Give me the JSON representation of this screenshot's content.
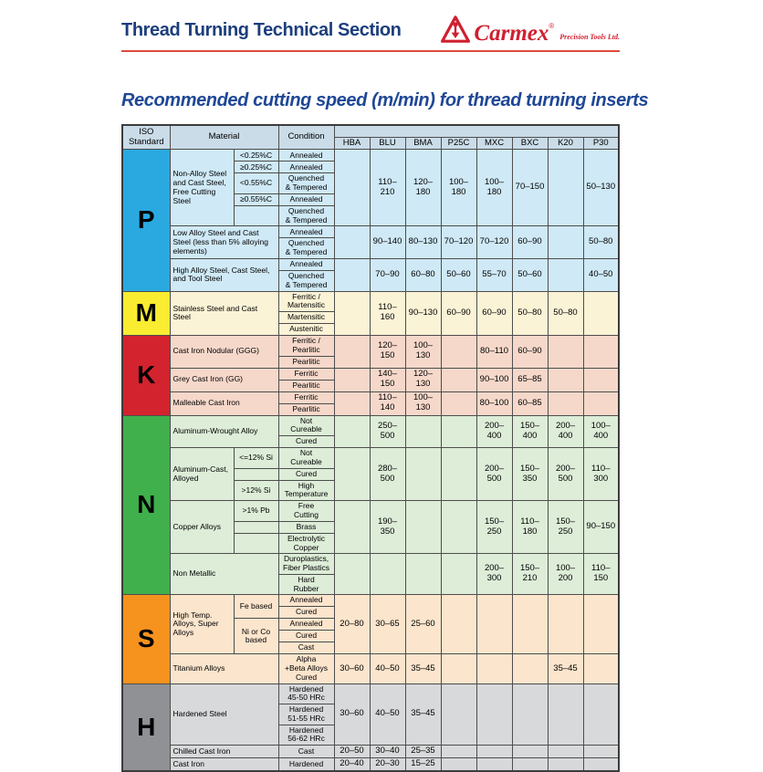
{
  "page": {
    "header_title": "Thread Turning Technical Section",
    "logo": {
      "brand": "Carmex",
      "registered": "®",
      "suffix": "Precision Tools Ltd."
    },
    "table_title": "Recommended cutting speed (m/min) for thread turning inserts"
  },
  "colors": {
    "header_blue": "#1c3e7c",
    "title_blue": "#1e4796",
    "rule_red": "#dd4b3e",
    "brand_red": "#cf2030",
    "table_header_bg": "#cadce8",
    "border": "#4d4d4d"
  },
  "table": {
    "header": {
      "iso": "ISO\nStandard",
      "material": "Material",
      "condition": "Condition",
      "grades": [
        "HBA",
        "BLU",
        "BMA",
        "P25C",
        "MXC",
        "BXC",
        "K20",
        "P30"
      ]
    },
    "sections": [
      {
        "letter": "P",
        "letter_bg": "#29a9e0",
        "body_bg": "#cfe9f6",
        "groups": [
          {
            "material": "Non-Alloy Steel and Cast Steel, Free Cutting Steel",
            "sub_col": true,
            "rows": [
              {
                "sub": "<0.25%C",
                "condition": "Annealed"
              },
              {
                "sub": "≥0.25%C",
                "condition": "Annealed"
              },
              {
                "sub": "<0.55%C",
                "condition": "Quenched\n& Tempered"
              },
              {
                "sub": "≥0.55%C",
                "condition": "Annealed"
              },
              {
                "sub": "",
                "condition": "Quenched\n& Tempered"
              }
            ],
            "values": [
              "",
              "110–210",
              "120–180",
              "100–180",
              "100–180",
              "70–150",
              "",
              "50–130"
            ]
          },
          {
            "material": "Low Alloy Steel and Cast Steel (less than 5% alloying elements)",
            "sub_col": false,
            "rows": [
              {
                "condition": "Annealed"
              },
              {
                "condition": "Quenched\n& Tempered"
              }
            ],
            "values": [
              "",
              "90–140",
              "80–130",
              "70–120",
              "70–120",
              "60–90",
              "",
              "50–80"
            ]
          },
          {
            "material": "High Alloy Steel, Cast Steel, and Tool Steel",
            "sub_col": false,
            "rows": [
              {
                "condition": "Annealed"
              },
              {
                "condition": "Quenched\n& Tempered"
              }
            ],
            "values": [
              "",
              "70–90",
              "60–80",
              "50–60",
              "55–70",
              "50–60",
              "",
              "40–50"
            ]
          }
        ]
      },
      {
        "letter": "M",
        "letter_bg": "#f9ec31",
        "body_bg": "#fbf3d6",
        "groups": [
          {
            "material": "Stainless Steel and Cast Steel",
            "sub_col": false,
            "rows": [
              {
                "condition": "Ferritic /\nMartensitic"
              },
              {
                "condition": "Martensitic"
              },
              {
                "condition": "Austenitic"
              }
            ],
            "values": [
              "",
              "110–160",
              "90–130",
              "60–90",
              "60–90",
              "50–80",
              "50–80",
              ""
            ]
          }
        ]
      },
      {
        "letter": "K",
        "letter_bg": "#d2232e",
        "body_bg": "#f6d8ca",
        "groups": [
          {
            "material": "Cast Iron Nodular (GGG)",
            "sub_col": false,
            "rows": [
              {
                "condition": "Ferritic /\nPearlitic"
              },
              {
                "condition": "Pearlitic"
              }
            ],
            "values": [
              "",
              "120–150",
              "100–130",
              "",
              "80–110",
              "60–90",
              "",
              ""
            ]
          },
          {
            "material": "Grey Cast Iron (GG)",
            "sub_col": false,
            "rows": [
              {
                "condition": "Ferritic"
              },
              {
                "condition": "Pearlitic"
              }
            ],
            "values": [
              "",
              "140–150",
              "120–130",
              "",
              "90–100",
              "65–85",
              "",
              ""
            ]
          },
          {
            "material": "Malleable Cast Iron",
            "sub_col": false,
            "rows": [
              {
                "condition": "Ferritic"
              },
              {
                "condition": "Pearlitic"
              }
            ],
            "values": [
              "",
              "110–140",
              "100–130",
              "",
              "80–100",
              "60–85",
              "",
              ""
            ]
          }
        ]
      },
      {
        "letter": "N",
        "letter_bg": "#3fb04c",
        "body_bg": "#ddedd8",
        "groups": [
          {
            "material": "Aluminum-Wrought Alloy",
            "sub_col": false,
            "rows": [
              {
                "condition": "Not\nCureable"
              },
              {
                "condition": "Cured"
              }
            ],
            "values": [
              "",
              "250–500",
              "",
              "",
              "200–400",
              "150–400",
              "200–400",
              "100–400"
            ]
          },
          {
            "material": "Aluminum-Cast, Alloyed",
            "sub_col": true,
            "rows": [
              {
                "sub": "<=12% Si",
                "condition": "Not\nCureable"
              },
              {
                "sub": "",
                "condition": "Cured"
              },
              {
                "sub": ">12% Si",
                "condition": "High\nTemperature"
              }
            ],
            "values": [
              "",
              "280–500",
              "",
              "",
              "200–500",
              "150–350",
              "200–500",
              "110–300"
            ]
          },
          {
            "material": "Copper Alloys",
            "sub_col": true,
            "rows": [
              {
                "sub": ">1% Pb",
                "condition": "Free\nCutting"
              },
              {
                "sub": "",
                "condition": "Brass"
              },
              {
                "sub": "",
                "condition": "Electrolytic\nCopper"
              }
            ],
            "values": [
              "",
              "190–350",
              "",
              "",
              "150–250",
              "110–180",
              "150–250",
              "90–150"
            ]
          },
          {
            "material": "Non Metallic",
            "sub_col": false,
            "rows": [
              {
                "condition": "Duroplastics,\nFiber Plastics"
              },
              {
                "condition": "Hard\nRubber"
              }
            ],
            "values": [
              "",
              "",
              "",
              "",
              "200–300",
              "150–210",
              "100–200",
              "110–150"
            ]
          }
        ]
      },
      {
        "letter": "S",
        "letter_bg": "#f6921e",
        "body_bg": "#fce5cd",
        "groups": [
          {
            "material": "High Temp. Alloys, Super Alloys",
            "sub_col": true,
            "rows": [
              {
                "sub": "Fe based",
                "subspan": 2,
                "condition": "Annealed"
              },
              {
                "sub": null,
                "condition": "Cured"
              },
              {
                "sub": "Ni or Co based",
                "subspan": 3,
                "condition": "Annealed"
              },
              {
                "sub": null,
                "condition": "Cured"
              },
              {
                "sub": null,
                "condition": "Cast"
              }
            ],
            "values": [
              "20–80",
              "30–65",
              "25–60",
              "",
              "",
              "",
              "",
              ""
            ]
          },
          {
            "material": "Titanium Alloys",
            "sub_col": false,
            "rows": [
              {
                "condition": "Alpha\n+Beta Alloys\nCured"
              }
            ],
            "values": [
              "30–60",
              "40–50",
              "35–45",
              "",
              "",
              "",
              "35–45",
              ""
            ]
          }
        ]
      },
      {
        "letter": "H",
        "letter_bg": "#8f9194",
        "body_bg": "#d8d9da",
        "groups": [
          {
            "material": "Hardened Steel",
            "sub_col": false,
            "rows": [
              {
                "condition": "Hardened\n45-50 HRc"
              },
              {
                "condition": "Hardened\n51-55 HRc"
              },
              {
                "condition": "Hardened\n56-62 HRc"
              }
            ],
            "values": [
              "30–60",
              "40–50",
              "35–45",
              "",
              "",
              "",
              "",
              ""
            ]
          },
          {
            "material": "Chilled Cast Iron",
            "sub_col": false,
            "rows": [
              {
                "condition": "Cast"
              }
            ],
            "values": [
              "20–50",
              "30–40",
              "25–35",
              "",
              "",
              "",
              "",
              ""
            ]
          },
          {
            "material": "Cast Iron",
            "sub_col": false,
            "rows": [
              {
                "condition": "Hardened"
              }
            ],
            "values": [
              "20–40",
              "20–30",
              "15–25",
              "",
              "",
              "",
              "",
              ""
            ]
          }
        ]
      }
    ]
  }
}
